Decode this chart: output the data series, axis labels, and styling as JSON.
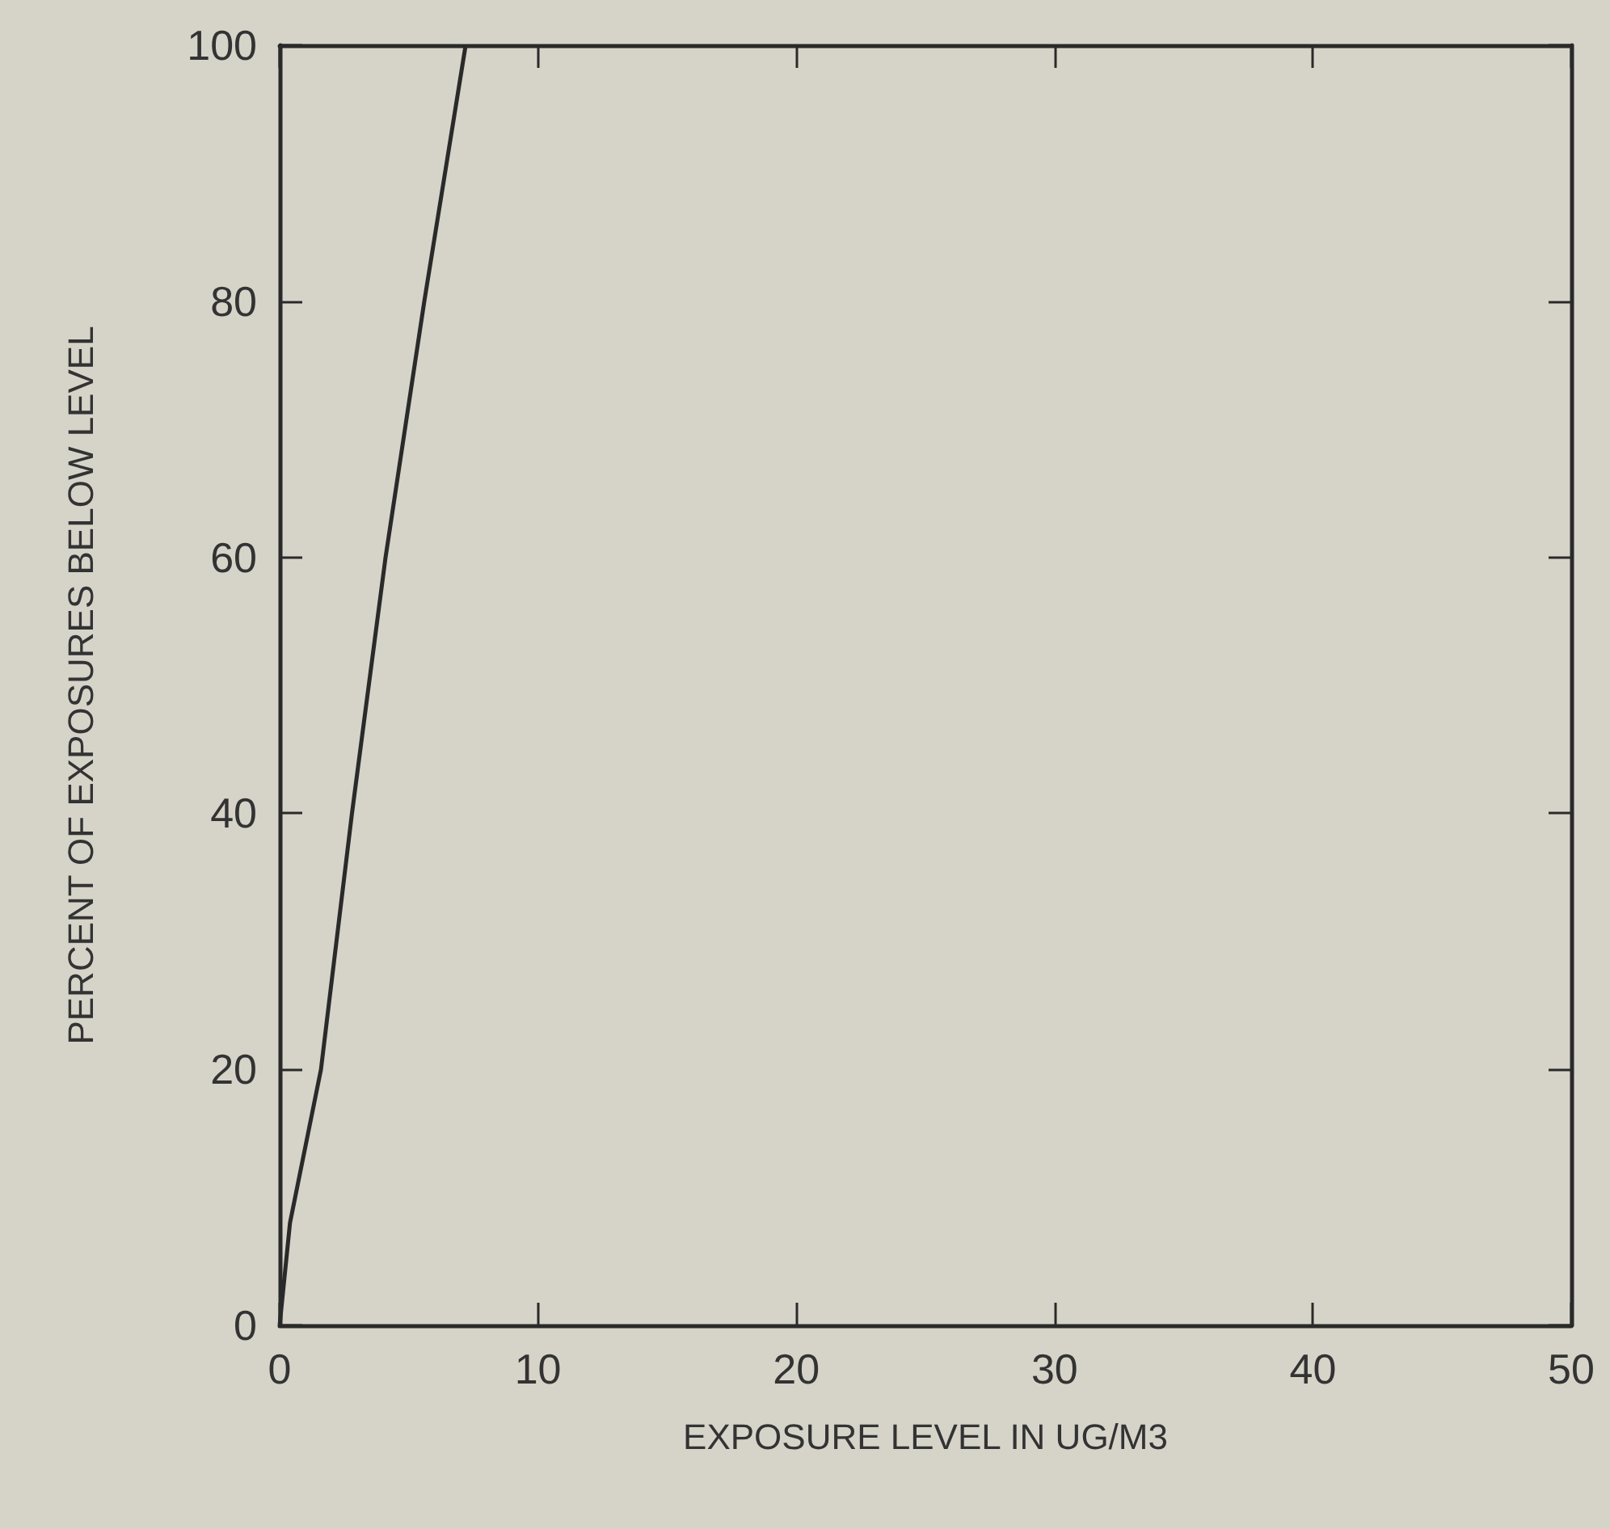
{
  "chart_data": {
    "type": "line",
    "xlabel": "EXPOSURE LEVEL IN UG/M3",
    "ylabel": "PERCENT OF EXPOSURES BELOW LEVEL",
    "x": [
      0,
      0.4,
      1.6,
      2.8,
      4.1,
      5.6,
      7.2
    ],
    "series": [
      {
        "color": "#2a2a2a",
        "values": [
          0,
          8,
          20,
          40,
          60,
          80,
          100
        ]
      }
    ],
    "xlim": [
      0,
      50
    ],
    "xticks": [
      0,
      10,
      20,
      30,
      40,
      50
    ],
    "ylim": [
      0,
      100
    ],
    "yticks": [
      0,
      20,
      40,
      60,
      80,
      100
    ],
    "grid": false,
    "marker": "none",
    "line_style": "solid"
  }
}
